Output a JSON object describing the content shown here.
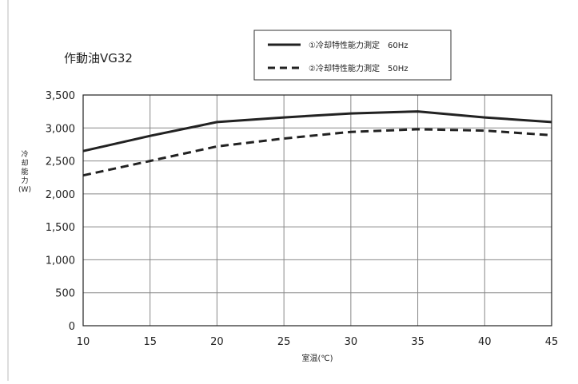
{
  "chart_data": {
    "type": "line",
    "title": "作動油VG32",
    "xlabel": "室温(℃)",
    "ylabel": [
      "冷",
      "却",
      "能",
      "力",
      "(W)"
    ],
    "x": [
      10,
      15,
      20,
      25,
      30,
      35,
      40,
      45
    ],
    "xlim": [
      10,
      45
    ],
    "ylim": [
      0,
      3500
    ],
    "xticks": [
      "10",
      "15",
      "20",
      "25",
      "30",
      "35",
      "40",
      "45"
    ],
    "yticks": [
      "0",
      "500",
      "1,000",
      "1,500",
      "2,000",
      "2,500",
      "3,000",
      "3,500"
    ],
    "grid": true,
    "legend_position": "top-center",
    "series": [
      {
        "name": "①冷却特性能力測定　60Hz",
        "style": "solid",
        "color": "#222222",
        "values": [
          2650,
          2880,
          3090,
          3160,
          3220,
          3250,
          3160,
          3090
        ]
      },
      {
        "name": "②冷却特性能力測定　50Hz",
        "style": "dashed",
        "color": "#222222",
        "values": [
          2280,
          2500,
          2720,
          2840,
          2940,
          2980,
          2960,
          2890
        ]
      }
    ]
  }
}
